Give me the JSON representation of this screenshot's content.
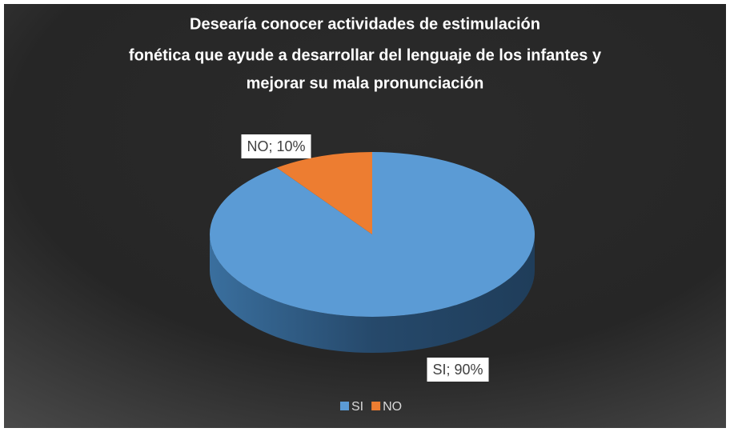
{
  "chart_data": {
    "type": "pie",
    "title": [
      "Desearía conocer actividades de estimulación",
      "fonética que ayude a desarrollar del lenguaje de los infantes y",
      "mejorar su mala pronunciación"
    ],
    "categories": [
      "SI",
      "NO"
    ],
    "values": [
      90,
      10
    ],
    "value_labels": [
      "SI; 90%",
      "NO; 10%"
    ],
    "colors": [
      "#5b9bd5",
      "#ed7d31"
    ],
    "legend": "bottom"
  }
}
